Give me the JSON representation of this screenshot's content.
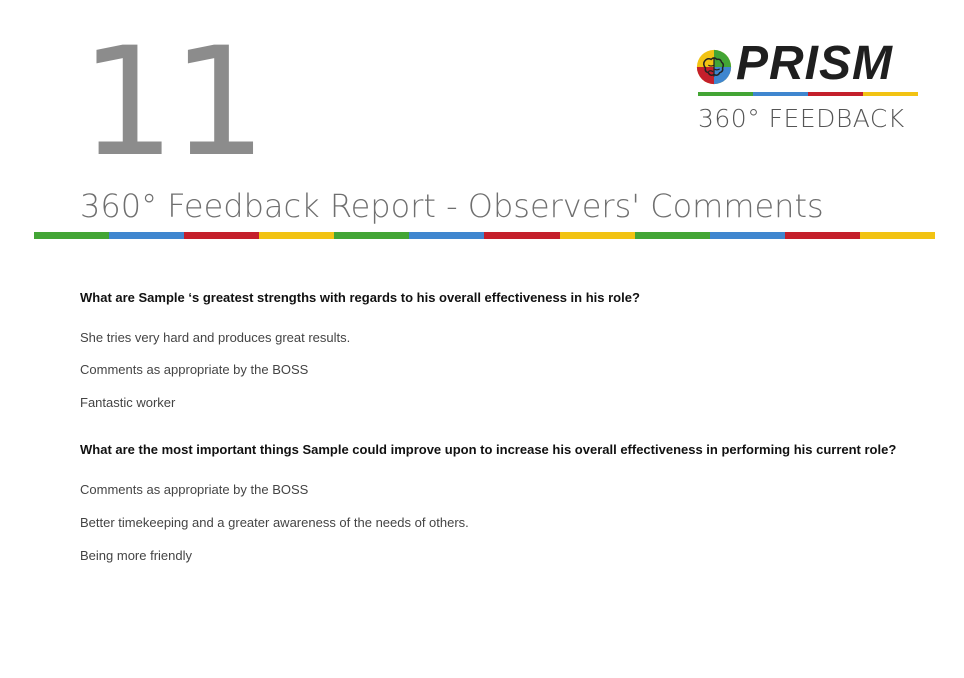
{
  "header": {
    "page_number": "11",
    "title": "360° Feedback Report - Observers' Comments"
  },
  "logo": {
    "word": "PRISM",
    "subtitle": "360° FEEDBACK",
    "mark_icon": "brain-icon",
    "bar_colors": [
      "#43a535",
      "#3f86cf",
      "#c41f2b",
      "#f2c313"
    ]
  },
  "divider": {
    "colors": [
      "#43a535",
      "#3f86cf",
      "#c41f2b",
      "#f2c313",
      "#43a535",
      "#3f86cf",
      "#c41f2b",
      "#f2c313",
      "#43a535",
      "#3f86cf",
      "#c41f2b",
      "#f2c313"
    ]
  },
  "sections": [
    {
      "question": "What are Sample ‘s greatest strengths with regards to his overall effectiveness in his role?",
      "answers": [
        "She tries very hard and produces great results.",
        "Comments as appropriate by the BOSS",
        "Fantastic worker"
      ]
    },
    {
      "question": "What are the most important things Sample could improve upon to increase his overall effectiveness in performing his current role?",
      "answers": [
        "Comments as appropriate by the BOSS",
        "Better timekeeping and a greater awareness of the needs of others.",
        "Being more friendly"
      ]
    }
  ]
}
